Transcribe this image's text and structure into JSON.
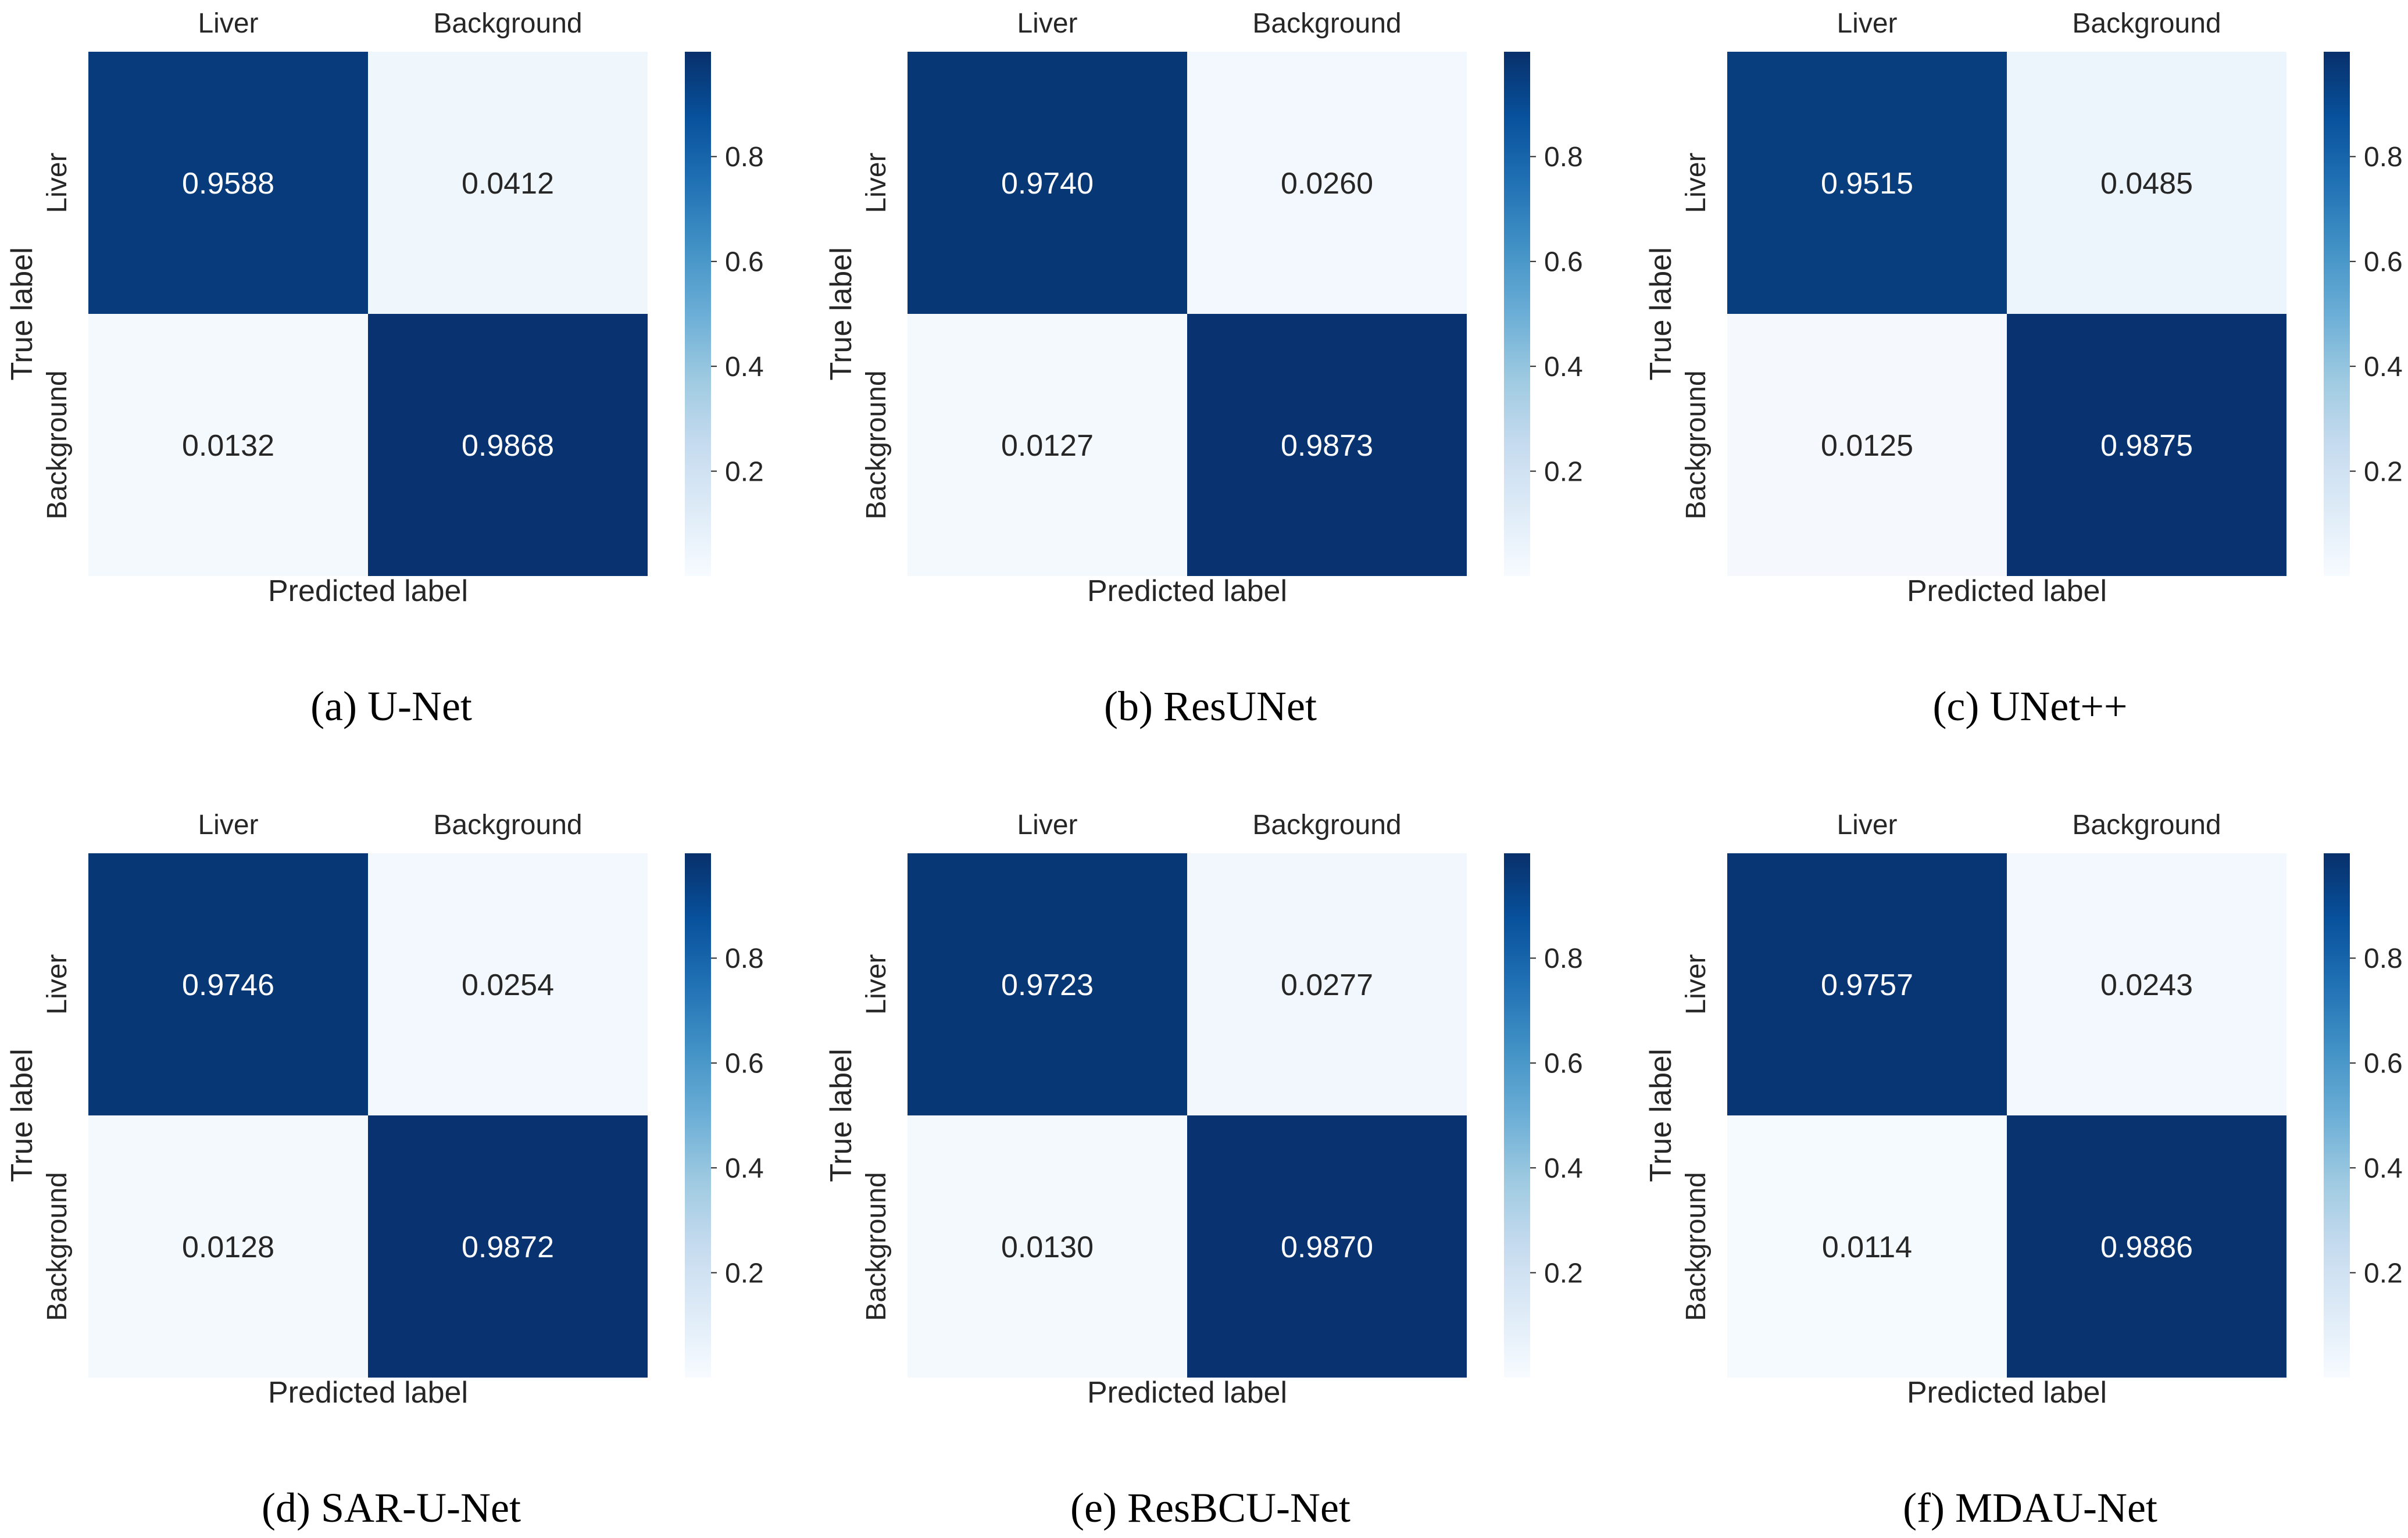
{
  "chart_data": [
    {
      "type": "heatmap",
      "caption": "(a) U-Net",
      "xlabel": "Predicted label",
      "ylabel": "True label",
      "x_tick_labels": [
        "Liver",
        "Background"
      ],
      "y_tick_labels": [
        "Liver",
        "Background"
      ],
      "matrix": [
        [
          0.9588,
          0.0412
        ],
        [
          0.0132,
          0.9868
        ]
      ],
      "cell_labels": [
        [
          "0.9588",
          "0.0412"
        ],
        [
          "0.0132",
          "0.9868"
        ]
      ],
      "colormap": "Blues",
      "color_range": [
        0,
        1
      ],
      "colorbar_ticks": [
        "0.2",
        "0.4",
        "0.6",
        "0.8"
      ]
    },
    {
      "type": "heatmap",
      "caption": "(b) ResUNet",
      "xlabel": "Predicted label",
      "ylabel": "True label",
      "x_tick_labels": [
        "Liver",
        "Background"
      ],
      "y_tick_labels": [
        "Liver",
        "Background"
      ],
      "matrix": [
        [
          0.974,
          0.026
        ],
        [
          0.0127,
          0.9873
        ]
      ],
      "cell_labels": [
        [
          "0.9740",
          "0.0260"
        ],
        [
          "0.0127",
          "0.9873"
        ]
      ],
      "colormap": "Blues",
      "color_range": [
        0,
        1
      ],
      "colorbar_ticks": [
        "0.2",
        "0.4",
        "0.6",
        "0.8"
      ]
    },
    {
      "type": "heatmap",
      "caption": "(c) UNet++",
      "xlabel": "Predicted label",
      "ylabel": "True label",
      "x_tick_labels": [
        "Liver",
        "Background"
      ],
      "y_tick_labels": [
        "Liver",
        "Background"
      ],
      "matrix": [
        [
          0.9515,
          0.0485
        ],
        [
          0.0125,
          0.9875
        ]
      ],
      "cell_labels": [
        [
          "0.9515",
          "0.0485"
        ],
        [
          "0.0125",
          "0.9875"
        ]
      ],
      "colormap": "Blues",
      "color_range": [
        0,
        1
      ],
      "colorbar_ticks": [
        "0.2",
        "0.4",
        "0.6",
        "0.8"
      ]
    },
    {
      "type": "heatmap",
      "caption": "(d) SAR-U-Net",
      "xlabel": "Predicted label",
      "ylabel": "True label",
      "x_tick_labels": [
        "Liver",
        "Background"
      ],
      "y_tick_labels": [
        "Liver",
        "Background"
      ],
      "matrix": [
        [
          0.9746,
          0.0254
        ],
        [
          0.0128,
          0.9872
        ]
      ],
      "cell_labels": [
        [
          "0.9746",
          "0.0254"
        ],
        [
          "0.0128",
          "0.9872"
        ]
      ],
      "colormap": "Blues",
      "color_range": [
        0,
        1
      ],
      "colorbar_ticks": [
        "0.2",
        "0.4",
        "0.6",
        "0.8"
      ]
    },
    {
      "type": "heatmap",
      "caption": "(e) ResBCU-Net",
      "xlabel": "Predicted label",
      "ylabel": "True label",
      "x_tick_labels": [
        "Liver",
        "Background"
      ],
      "y_tick_labels": [
        "Liver",
        "Background"
      ],
      "matrix": [
        [
          0.9723,
          0.0277
        ],
        [
          0.013,
          0.987
        ]
      ],
      "cell_labels": [
        [
          "0.9723",
          "0.0277"
        ],
        [
          "0.0130",
          "0.9870"
        ]
      ],
      "colormap": "Blues",
      "color_range": [
        0,
        1
      ],
      "colorbar_ticks": [
        "0.2",
        "0.4",
        "0.6",
        "0.8"
      ]
    },
    {
      "type": "heatmap",
      "caption": "(f) MDAU-Net",
      "xlabel": "Predicted label",
      "ylabel": "True label",
      "x_tick_labels": [
        "Liver",
        "Background"
      ],
      "y_tick_labels": [
        "Liver",
        "Background"
      ],
      "matrix": [
        [
          0.9757,
          0.0243
        ],
        [
          0.0114,
          0.9886
        ]
      ],
      "cell_labels": [
        [
          "0.9757",
          "0.0243"
        ],
        [
          "0.0114",
          "0.9886"
        ]
      ],
      "colormap": "Blues",
      "color_range": [
        0,
        1
      ],
      "colorbar_ticks": [
        "0.2",
        "0.4",
        "0.6",
        "0.8"
      ]
    }
  ]
}
